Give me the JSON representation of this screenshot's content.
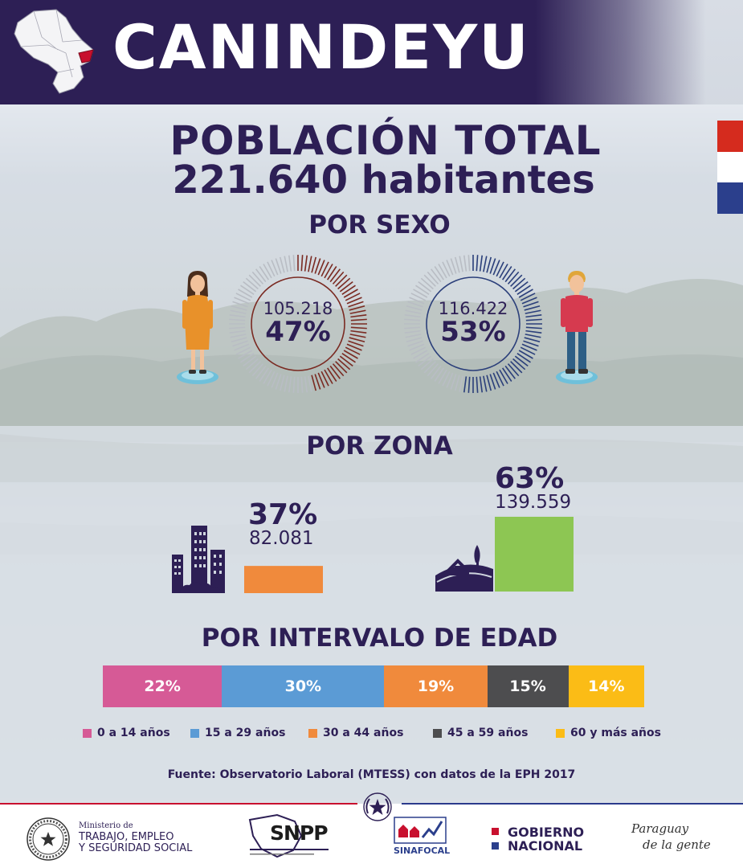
{
  "header": {
    "title": "CANINDEYU"
  },
  "population": {
    "title": "POBLACIÓN TOTAL",
    "total": "221.640 habitantes"
  },
  "sections": {
    "sex": "POR SEXO",
    "zone": "POR ZONA",
    "age": "POR INTERVALO DE EDAD"
  },
  "colors": {
    "navy": "#2d1f55",
    "female": "#7a2a22",
    "male": "#2b3f7a",
    "urban": "#f08a3c",
    "rural": "#8dc653",
    "age1": "#d65a96",
    "age2": "#5b9bd5",
    "age3": "#f08a3c",
    "age4": "#4d4d4f",
    "age5": "#fbbc16"
  },
  "chart_data": [
    {
      "type": "pie",
      "categories": [
        "Mujeres",
        "Hombres"
      ],
      "values": [
        105218,
        116422
      ],
      "labels": [
        {
          "count": "105.218",
          "percent": "47%"
        },
        {
          "count": "116.422",
          "percent": "53%"
        }
      ],
      "percents": [
        47,
        53
      ]
    },
    {
      "type": "bar",
      "categories": [
        "Urbana",
        "Rural"
      ],
      "values": [
        82081,
        139559
      ],
      "labels": [
        {
          "percent": "37%",
          "count": "82.081"
        },
        {
          "percent": "63%",
          "count": "139.559"
        }
      ],
      "percents": [
        37,
        63
      ]
    },
    {
      "type": "bar",
      "stacked": true,
      "categories": [
        "0 a 14 años",
        "15 a 29 años",
        "30 a 44 años",
        "45 a 59 años",
        "60 y más años"
      ],
      "values": [
        22,
        30,
        19,
        15,
        14
      ],
      "value_labels": [
        "22%",
        "30%",
        "19%",
        "15%",
        "14%"
      ],
      "legend": "bottom"
    }
  ],
  "source": "Fuente: Observatorio Laboral (MTESS) con datos de la EPH 2017",
  "footer": {
    "ministry": {
      "line0": "Ministerio de",
      "line1": "TRABAJO, EMPLEO",
      "line2": "Y SEGURIDAD SOCIAL"
    },
    "snpp": "SNPP",
    "sinafocal": "SINAFOCAL",
    "gobierno": {
      "line1": "GOBIERNO",
      "line2": "NACIONAL"
    },
    "slogan": {
      "line1": "Paraguay",
      "line2": "de la gente"
    }
  }
}
